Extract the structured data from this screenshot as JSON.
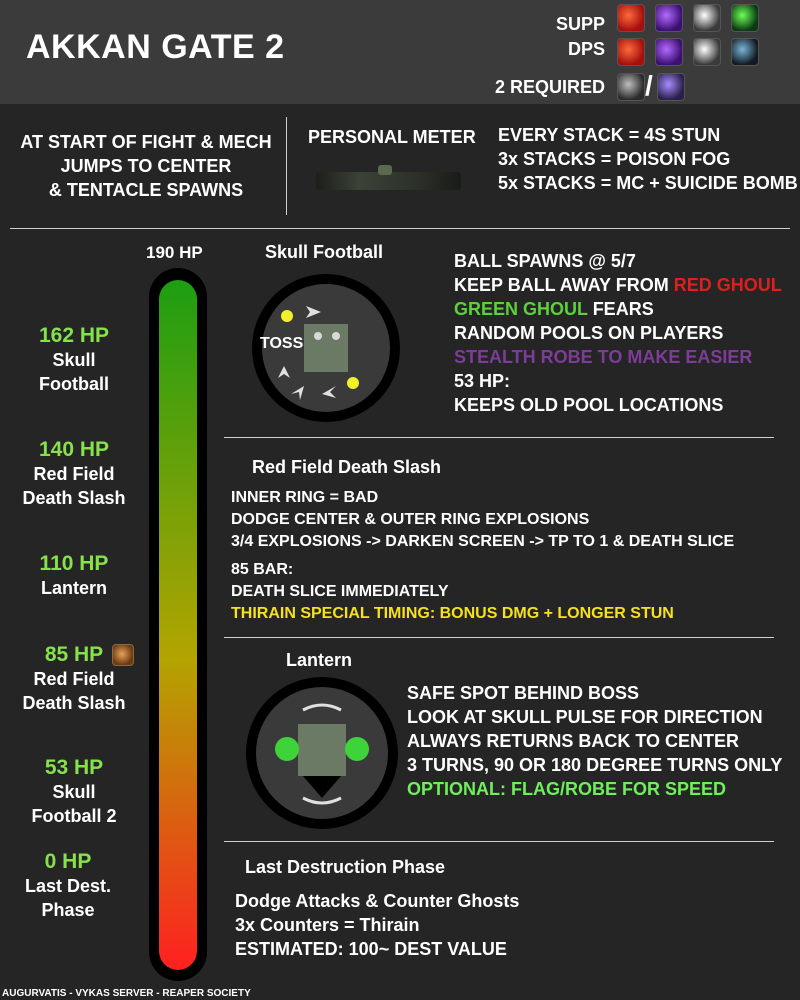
{
  "header": {
    "title": "AKKAN GATE 2",
    "supp_label": "SUPP",
    "dps_label": "DPS",
    "required_label": "2 REQUIRED",
    "supp_icons": [
      "red-scroll-icon",
      "purple-potion-icon",
      "white-bomb-icon",
      "green-potion-icon"
    ],
    "dps_icons": [
      "red-scroll-icon",
      "purple-potion-icon",
      "white-bomb-icon",
      "dark-bomb-icon"
    ],
    "required_icons": [
      "flag-icon",
      "robe-icon"
    ],
    "required_separator": "/"
  },
  "intro": {
    "start_text": [
      "AT START OF FIGHT & MECH",
      "JUMPS TO CENTER",
      "& TENTACLE SPAWNS"
    ],
    "meter_title": "PERSONAL METER",
    "stacks": [
      "EVERY STACK = 4S STUN",
      "3x STACKS = POISON FOG",
      "5x STACKS = MC + SUICIDE BOMB"
    ]
  },
  "hpbar": {
    "top_label": "190 HP",
    "colors": {
      "top": "#1d9e12",
      "middle": "#b3a400",
      "bottom": "#ff2020"
    },
    "milestones": [
      {
        "hp": "162 HP",
        "name": [
          "Skull",
          "Football"
        ]
      },
      {
        "hp": "140 HP",
        "name": [
          "Red Field",
          "Death Slash"
        ]
      },
      {
        "hp": "110 HP",
        "name": [
          "Lantern"
        ]
      },
      {
        "hp": "85 HP",
        "name": [
          "Red Field",
          "Death Slash"
        ]
      },
      {
        "hp": "53 HP",
        "name": [
          "Skull",
          "Football 2"
        ]
      },
      {
        "hp": "0 HP",
        "name": [
          "Last Dest.",
          "Phase"
        ]
      }
    ]
  },
  "skull_football": {
    "title": "Skull Football",
    "diagram_label": "TOSS",
    "lines": [
      {
        "parts": [
          {
            "t": "BALL SPAWNS @ 5/7",
            "c": "white"
          }
        ]
      },
      {
        "parts": [
          {
            "t": "KEEP BALL AWAY FROM ",
            "c": "white"
          },
          {
            "t": "RED GHOUL",
            "c": "red"
          }
        ]
      },
      {
        "parts": [
          {
            "t": "GREEN GHOUL",
            "c": "green"
          },
          {
            "t": " FEARS",
            "c": "white"
          }
        ]
      },
      {
        "parts": [
          {
            "t": "RANDOM POOLS ON PLAYERS",
            "c": "white"
          }
        ]
      },
      {
        "parts": [
          {
            "t": "STEALTH ROBE TO MAKE EASIER",
            "c": "purple"
          }
        ]
      },
      {
        "parts": [
          {
            "t": "53 HP:",
            "c": "white"
          }
        ]
      },
      {
        "parts": [
          {
            "t": "KEEPS OLD POOL LOCATIONS",
            "c": "white"
          }
        ]
      }
    ]
  },
  "death_slash": {
    "title": "Red Field Death Slash",
    "lines": [
      "INNER RING = BAD",
      "DODGE CENTER & OUTER RING EXPLOSIONS",
      "3/4 EXPLOSIONS -> DARKEN SCREEN -> TP TO 1 & DEATH SLICE"
    ],
    "lines2": [
      "85 BAR:",
      "DEATH SLICE IMMEDIATELY"
    ],
    "highlight": "THIRAIN SPECIAL TIMING: BONUS DMG + LONGER STUN"
  },
  "lantern": {
    "title": "Lantern",
    "lines": [
      "SAFE SPOT BEHIND BOSS",
      "LOOK AT SKULL PULSE FOR DIRECTION",
      "ALWAYS RETURNS BACK TO CENTER",
      "3 TURNS, 90 OR 180 DEGREE TURNS ONLY"
    ],
    "highlight": "OPTIONAL: FLAG/ROBE FOR SPEED"
  },
  "last_phase": {
    "title": "Last Destruction Phase",
    "lines": [
      "Dodge Attacks & Counter Ghosts",
      "3x Counters = Thirain",
      "ESTIMATED: 100~ DEST VALUE"
    ]
  },
  "footer": {
    "credit": "AUGURVATIS - VYKAS SERVER - REAPER SOCIETY"
  }
}
